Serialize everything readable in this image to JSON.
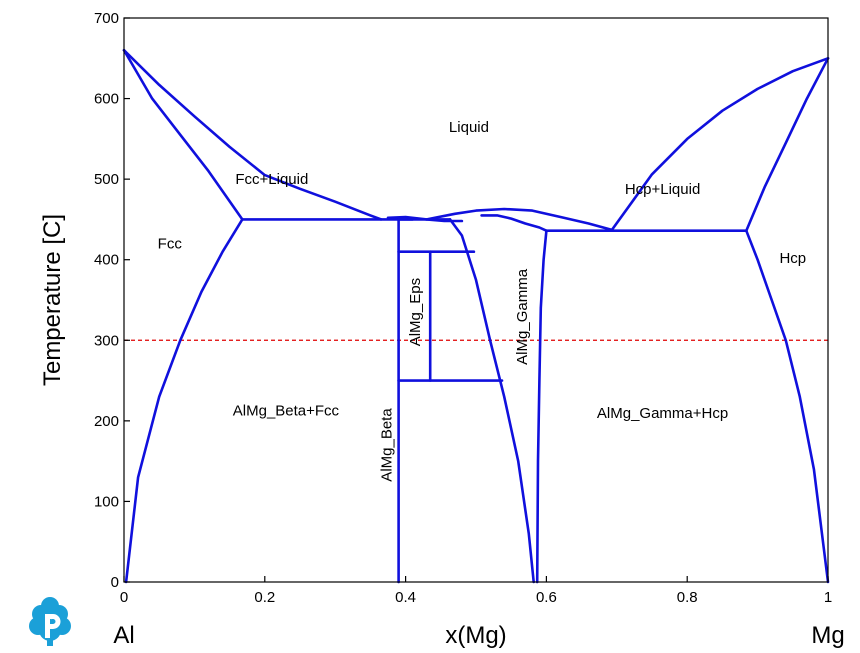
{
  "chart_data": {
    "type": "line",
    "title": "",
    "xlabel": "x(Mg)",
    "ylabel": "Temperature [C]",
    "xlim": [
      0,
      1
    ],
    "ylim": [
      0,
      700
    ],
    "x_ticks": [
      "0",
      "0.2",
      "0.4",
      "0.6",
      "0.8",
      "1"
    ],
    "y_ticks": [
      "0",
      "100",
      "200",
      "300",
      "400",
      "500",
      "600",
      "700"
    ],
    "x_tick_values": [
      0,
      0.2,
      0.4,
      0.6,
      0.8,
      1
    ],
    "y_tick_values": [
      0,
      100,
      200,
      300,
      400,
      500,
      600,
      700
    ],
    "left_end_label": "Al",
    "right_end_label": "Mg",
    "reference_line": {
      "y": 300,
      "color": "#e00000",
      "style": "dashed"
    },
    "line_color": "#1010dd",
    "regions": [
      {
        "label": "Liquid",
        "x": 0.49,
        "y": 565
      },
      {
        "label": "Fcc+Liquid",
        "x": 0.21,
        "y": 500
      },
      {
        "label": "Fcc",
        "x": 0.065,
        "y": 420
      },
      {
        "label": "Hcp+Liquid",
        "x": 0.765,
        "y": 488
      },
      {
        "label": "Hcp",
        "x": 0.95,
        "y": 402
      },
      {
        "label": "AlMg_Beta+Fcc",
        "x": 0.23,
        "y": 213
      },
      {
        "label": "AlMg_Gamma+Hcp",
        "x": 0.765,
        "y": 210
      },
      {
        "label": "AlMg_Beta",
        "x": 0.373,
        "y": 170,
        "rotate": -90
      },
      {
        "label": "AlMg_Eps",
        "x": 0.413,
        "y": 335,
        "rotate": -90
      },
      {
        "label": "AlMg_Gamma",
        "x": 0.565,
        "y": 329,
        "rotate": -90
      }
    ],
    "series": [
      {
        "points": [
          [
            0,
            660
          ],
          [
            0.05,
            617
          ],
          [
            0.1,
            578
          ],
          [
            0.15,
            540
          ],
          [
            0.2,
            505
          ],
          [
            0.25,
            488
          ],
          [
            0.3,
            472
          ],
          [
            0.35,
            455
          ],
          [
            0.365,
            450
          ]
        ]
      },
      {
        "points": [
          [
            0,
            660
          ],
          [
            0.04,
            600
          ],
          [
            0.08,
            555
          ],
          [
            0.12,
            510
          ],
          [
            0.168,
            450
          ]
        ]
      },
      {
        "points": [
          [
            0.003,
            0
          ],
          [
            0.02,
            130
          ],
          [
            0.05,
            230
          ],
          [
            0.08,
            300
          ],
          [
            0.11,
            360
          ],
          [
            0.14,
            410
          ],
          [
            0.168,
            450
          ]
        ]
      },
      {
        "points": [
          [
            0.168,
            450
          ],
          [
            0.41,
            450
          ]
        ]
      },
      {
        "points": [
          [
            0.375,
            452
          ],
          [
            0.4,
            453
          ],
          [
            0.43,
            450
          ],
          [
            0.455,
            448
          ],
          [
            0.48,
            448
          ]
        ]
      },
      {
        "points": [
          [
            0.43,
            450
          ],
          [
            0.47,
            457
          ],
          [
            0.5,
            461
          ],
          [
            0.54,
            463
          ],
          [
            0.58,
            461
          ],
          [
            0.62,
            453
          ],
          [
            0.66,
            445
          ],
          [
            0.693,
            437
          ]
        ]
      },
      {
        "points": [
          [
            0.463,
            450
          ],
          [
            0.48,
            430
          ],
          [
            0.5,
            375
          ],
          [
            0.52,
            300
          ],
          [
            0.54,
            230
          ],
          [
            0.56,
            150
          ],
          [
            0.575,
            60
          ],
          [
            0.582,
            0
          ]
        ]
      },
      {
        "points": [
          [
            0.508,
            455
          ],
          [
            0.53,
            455
          ],
          [
            0.55,
            451
          ],
          [
            0.57,
            445
          ],
          [
            0.59,
            440
          ],
          [
            0.6,
            436
          ]
        ]
      },
      {
        "points": [
          [
            0.6,
            436
          ],
          [
            0.596,
            400
          ],
          [
            0.592,
            340
          ],
          [
            0.59,
            250
          ],
          [
            0.588,
            150
          ],
          [
            0.587,
            0
          ]
        ]
      },
      {
        "points": [
          [
            0.6,
            436
          ],
          [
            0.884,
            436
          ]
        ]
      },
      {
        "points": [
          [
            0.693,
            437
          ],
          [
            0.75,
            506
          ],
          [
            0.8,
            550
          ],
          [
            0.85,
            585
          ],
          [
            0.9,
            612
          ],
          [
            0.95,
            634
          ],
          [
            1,
            650
          ]
        ]
      },
      {
        "points": [
          [
            0.884,
            436
          ],
          [
            0.91,
            490
          ],
          [
            0.94,
            545
          ],
          [
            0.97,
            600
          ],
          [
            1,
            650
          ]
        ]
      },
      {
        "points": [
          [
            0.884,
            436
          ],
          [
            0.9,
            400
          ],
          [
            0.92,
            350
          ],
          [
            0.94,
            300
          ],
          [
            0.96,
            230
          ],
          [
            0.98,
            140
          ],
          [
            1,
            0
          ]
        ]
      },
      {
        "points": [
          [
            0.39,
            450
          ],
          [
            0.39,
            0
          ]
        ]
      },
      {
        "points": [
          [
            0.39,
            450
          ],
          [
            0.463,
            450
          ]
        ]
      },
      {
        "points": [
          [
            0.39,
            410
          ],
          [
            0.497,
            410
          ]
        ]
      },
      {
        "points": [
          [
            0.39,
            250
          ],
          [
            0.537,
            250
          ]
        ]
      },
      {
        "points": [
          [
            0.435,
            410
          ],
          [
            0.435,
            250
          ]
        ]
      }
    ]
  }
}
